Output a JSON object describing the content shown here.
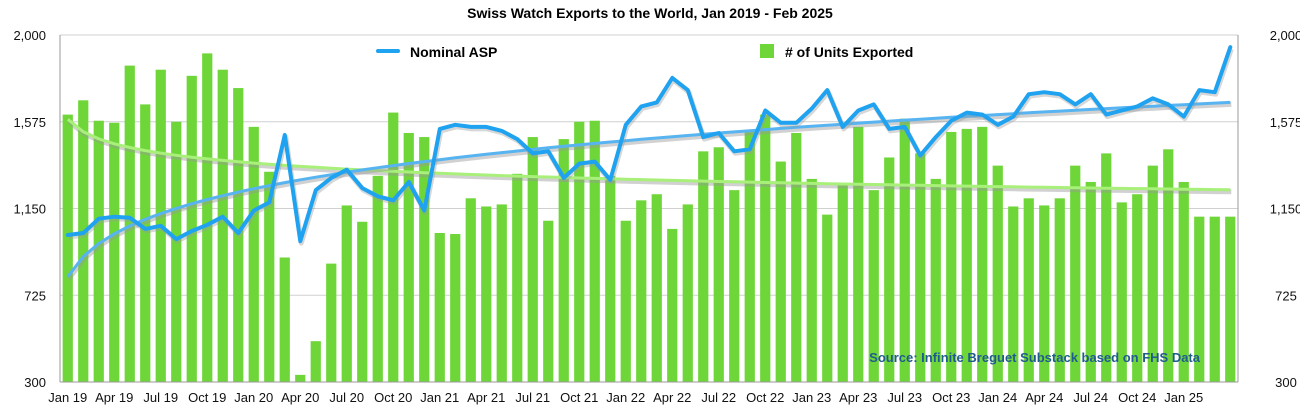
{
  "chart_data": {
    "type": "bar+line",
    "title": "Swiss Watch Exports to the World, Jan 2019 - Feb 2025",
    "source": "Source: Infinite Breguet Substack based on FHS Data",
    "ylim": [
      300,
      2000
    ],
    "left_ticks": [
      "2,000",
      "1,575",
      "1,150",
      "725",
      "300"
    ],
    "right_ticks": [
      "2,000",
      "1,575",
      "1,150",
      "725",
      "300"
    ],
    "tick_values": [
      2000,
      1575,
      1150,
      725,
      300
    ],
    "x_labels": [
      "Jan 19",
      "Apr 19",
      "Jul 19",
      "Oct 19",
      "Jan 20",
      "Apr 20",
      "Jul 20",
      "Oct 20",
      "Jan 21",
      "Apr 21",
      "Jul 21",
      "Oct 21",
      "Jan 22",
      "Apr 22",
      "Jul 22",
      "Oct 22",
      "Jan 23",
      "Apr 23",
      "Jul 23",
      "Oct 23",
      "Jan 24",
      "Apr 24",
      "Jul 24",
      "Oct 24",
      "Jan 25"
    ],
    "x_label_step": 3,
    "series": [
      {
        "name": "# of Units Exported",
        "type": "bar",
        "color": "#6fd63a",
        "values": [
          1610,
          1680,
          1580,
          1570,
          1850,
          1660,
          1830,
          1575,
          1800,
          1910,
          1830,
          1740,
          1550,
          1330,
          910,
          335,
          500,
          880,
          1165,
          1085,
          1310,
          1620,
          1520,
          1500,
          1030,
          1025,
          1200,
          1160,
          1170,
          1320,
          1500,
          1090,
          1490,
          1575,
          1580,
          1310,
          1090,
          1190,
          1220,
          1050,
          1170,
          1430,
          1450,
          1240,
          1530,
          1610,
          1380,
          1520,
          1295,
          1120,
          1270,
          1550,
          1240,
          1400,
          1590,
          1420,
          1295,
          1525,
          1540,
          1550,
          1360,
          1160,
          1200,
          1165,
          1200,
          1360,
          1280,
          1420,
          1180,
          1220,
          1360,
          1440,
          1280,
          1110,
          1110,
          1110
        ],
        "trend": "decreasing"
      },
      {
        "name": "Nominal ASP",
        "type": "line",
        "color": "#1fa2f0",
        "values": [
          1020,
          1030,
          1100,
          1110,
          1105,
          1050,
          1065,
          1000,
          1040,
          1070,
          1110,
          1030,
          1140,
          1180,
          1510,
          990,
          1240,
          1300,
          1340,
          1250,
          1210,
          1190,
          1280,
          1140,
          1540,
          1560,
          1550,
          1550,
          1530,
          1490,
          1420,
          1430,
          1300,
          1370,
          1380,
          1290,
          1560,
          1650,
          1670,
          1790,
          1730,
          1500,
          1520,
          1430,
          1440,
          1630,
          1570,
          1570,
          1640,
          1730,
          1550,
          1630,
          1660,
          1540,
          1550,
          1410,
          1500,
          1580,
          1620,
          1610,
          1560,
          1600,
          1710,
          1720,
          1710,
          1660,
          1710,
          1610,
          1630,
          1650,
          1690,
          1660,
          1600,
          1730,
          1720,
          1940
        ],
        "trend": "increasing"
      }
    ]
  }
}
